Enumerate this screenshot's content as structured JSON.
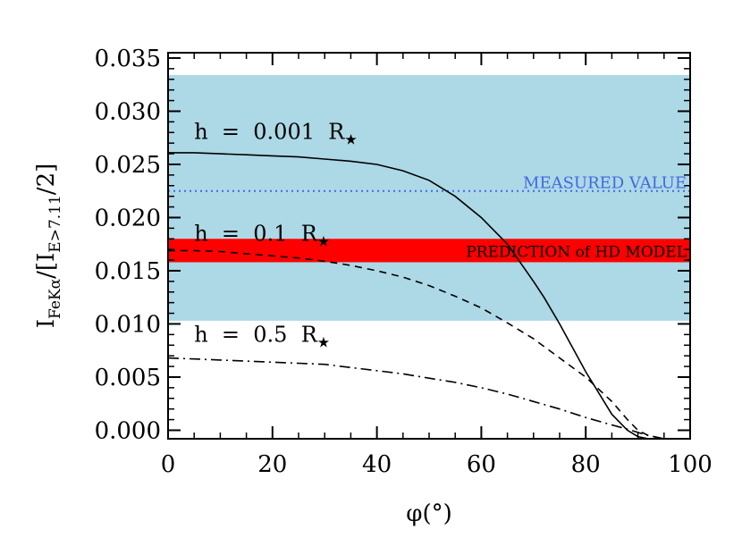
{
  "chart_data": {
    "type": "line",
    "xlabel": "φ(°)",
    "ylabel": {
      "main": "I",
      "main_sub": "FeKα",
      "mid": "/[I",
      "den_sub": "E>7.11",
      "tail": "/2]"
    },
    "xlim": [
      0,
      100
    ],
    "ylim": [
      -0.0008,
      0.0355
    ],
    "x_ticks": [
      {
        "value": 0,
        "label": "0"
      },
      {
        "value": 20,
        "label": "20"
      },
      {
        "value": 40,
        "label": "40"
      },
      {
        "value": 60,
        "label": "60"
      },
      {
        "value": 80,
        "label": "80"
      },
      {
        "value": 100,
        "label": "100"
      }
    ],
    "y_ticks": [
      {
        "value": 0.0,
        "label": "0.000"
      },
      {
        "value": 0.005,
        "label": "0.005"
      },
      {
        "value": 0.01,
        "label": "0.010"
      },
      {
        "value": 0.015,
        "label": "0.015"
      },
      {
        "value": 0.02,
        "label": "0.020"
      },
      {
        "value": 0.025,
        "label": "0.025"
      },
      {
        "value": 0.03,
        "label": "0.030"
      },
      {
        "value": 0.035,
        "label": "0.035"
      }
    ],
    "grid": false,
    "bands": [
      {
        "name": "measured-range",
        "y_low": 0.0103,
        "y_high": 0.0334,
        "color": "#add8e6"
      },
      {
        "name": "prediction",
        "label": "PREDICTION of HD MODEL",
        "y_low": 0.0158,
        "y_high": 0.018,
        "color": "#ff0000"
      }
    ],
    "measured_line": {
      "label": "MEASURED VALUE",
      "y": 0.0225,
      "color": "#4169e1"
    },
    "series": [
      {
        "label": "h = 0.001 R",
        "label_anchor": {
          "x": 5,
          "y": 0.0274
        },
        "style": "solid",
        "x": [
          0,
          5,
          10,
          15,
          20,
          25,
          30,
          35,
          40,
          45,
          50,
          55,
          60,
          65,
          70,
          72,
          75,
          80,
          85,
          88,
          90,
          92,
          95,
          100
        ],
        "y": [
          0.0261,
          0.0261,
          0.026,
          0.0259,
          0.0258,
          0.0257,
          0.0255,
          0.0253,
          0.025,
          0.0244,
          0.0235,
          0.022,
          0.02,
          0.0175,
          0.014,
          0.0125,
          0.01,
          0.0055,
          0.0015,
          0.0,
          -0.0006,
          -0.0008,
          -0.0008,
          -0.0008
        ]
      },
      {
        "label": "h = 0.1 R",
        "label_anchor": {
          "x": 5,
          "y": 0.0178
        },
        "style": "dashed",
        "x": [
          0,
          5,
          10,
          15,
          20,
          25,
          30,
          35,
          40,
          45,
          50,
          55,
          60,
          65,
          70,
          75,
          80,
          85,
          88,
          90,
          92,
          95,
          100
        ],
        "y": [
          0.0169,
          0.0169,
          0.0168,
          0.0166,
          0.0164,
          0.0162,
          0.0159,
          0.0155,
          0.015,
          0.0144,
          0.0136,
          0.0126,
          0.0115,
          0.0101,
          0.0086,
          0.0068,
          0.005,
          0.0027,
          0.001,
          0.0,
          -0.0005,
          -0.0008,
          -0.0008
        ]
      },
      {
        "label": "h = 0.5 R",
        "label_anchor": {
          "x": 5,
          "y": 0.0083
        },
        "style": "dashdot",
        "x": [
          0,
          5,
          10,
          15,
          20,
          25,
          30,
          35,
          40,
          45,
          50,
          55,
          60,
          65,
          70,
          75,
          80,
          85,
          88,
          90,
          92,
          95,
          100
        ],
        "y": [
          0.0068,
          0.0067,
          0.0066,
          0.0065,
          0.0064,
          0.0063,
          0.0062,
          0.0059,
          0.0056,
          0.0053,
          0.0049,
          0.0045,
          0.004,
          0.0034,
          0.0027,
          0.002,
          0.0012,
          0.0005,
          0.0001,
          -0.0002,
          -0.0005,
          -0.0008,
          -0.0008
        ]
      }
    ]
  }
}
